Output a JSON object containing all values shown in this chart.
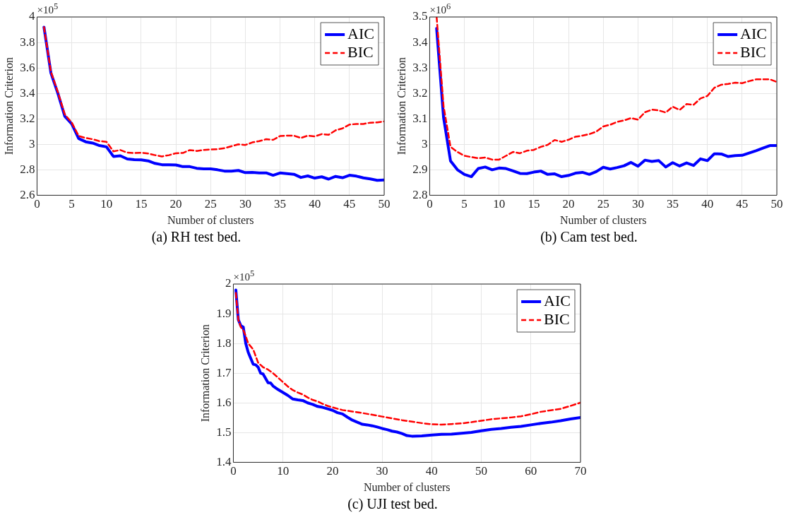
{
  "chart_data": [
    {
      "type": "line",
      "xlabel": "Number of clusters",
      "ylabel": "Information Criterion",
      "annotations": [
        "×10$^{5}$",
        "(a) RH test bed."
      ],
      "xlim": [
        0,
        50
      ],
      "xticks": [
        0,
        5,
        10,
        15,
        20,
        25,
        30,
        35,
        40,
        45,
        50
      ],
      "ylim": [
        2.6,
        4
      ],
      "yticks": [
        2.6,
        2.8,
        3,
        3.2,
        3.4,
        3.6,
        3.8,
        4
      ],
      "grid": true,
      "legend": "top right",
      "marker": "none",
      "x": [
        1,
        2,
        3,
        4,
        5,
        6,
        7,
        8,
        9,
        10,
        11,
        12,
        13,
        14,
        15,
        16,
        17,
        18,
        19,
        20,
        21,
        22,
        23,
        24,
        25,
        26,
        27,
        28,
        29,
        30,
        31,
        32,
        33,
        34,
        35,
        36,
        37,
        38,
        39,
        40,
        41,
        42,
        43,
        44,
        45,
        46,
        47,
        48,
        49,
        50
      ],
      "series": [
        {
          "name": "AIC",
          "color": "#0000ff",
          "line_style": "solid",
          "values": [
            3.92,
            3.56,
            3.4,
            3.22,
            3.16,
            3.045,
            3.02,
            3.01,
            2.99,
            2.98,
            2.905,
            2.91,
            2.885,
            2.88,
            2.878,
            2.87,
            2.85,
            2.84,
            2.84,
            2.838,
            2.825,
            2.825,
            2.812,
            2.808,
            2.808,
            2.8,
            2.79,
            2.79,
            2.795,
            2.778,
            2.78,
            2.775,
            2.776,
            2.757,
            2.775,
            2.77,
            2.765,
            2.74,
            2.752,
            2.735,
            2.745,
            2.727,
            2.748,
            2.738,
            2.757,
            2.75,
            2.737,
            2.728,
            2.717,
            2.72
          ]
        },
        {
          "name": "BIC",
          "color": "#ff0000",
          "line_style": "dashed",
          "values": [
            3.92,
            3.57,
            3.41,
            3.235,
            3.17,
            3.065,
            3.05,
            3.04,
            3.025,
            3.02,
            2.945,
            2.955,
            2.935,
            2.932,
            2.934,
            2.928,
            2.915,
            2.905,
            2.915,
            2.93,
            2.932,
            2.955,
            2.948,
            2.955,
            2.96,
            2.962,
            2.97,
            2.985,
            3.0,
            2.995,
            3.015,
            3.025,
            3.04,
            3.035,
            3.065,
            3.068,
            3.068,
            3.05,
            3.068,
            3.062,
            3.08,
            3.075,
            3.11,
            3.125,
            3.155,
            3.16,
            3.16,
            3.17,
            3.172,
            3.18
          ]
        }
      ]
    },
    {
      "type": "line",
      "xlabel": "Number of clusters",
      "ylabel": "Information Criterion",
      "annotations": [
        "×10$^{6}$",
        "(b) Cam test bed."
      ],
      "xlim": [
        0,
        50
      ],
      "xticks": [
        0,
        5,
        10,
        15,
        20,
        25,
        30,
        35,
        40,
        45,
        50
      ],
      "ylim": [
        2.8,
        3.5
      ],
      "yticks": [
        2.8,
        2.9,
        3,
        3.1,
        3.2,
        3.3,
        3.4,
        3.5
      ],
      "grid": true,
      "legend": "top right",
      "marker": "none",
      "x": [
        1,
        2,
        3,
        4,
        5,
        6,
        7,
        8,
        9,
        10,
        11,
        12,
        13,
        14,
        15,
        16,
        17,
        18,
        19,
        20,
        21,
        22,
        23,
        24,
        25,
        26,
        27,
        28,
        29,
        30,
        31,
        32,
        33,
        34,
        35,
        36,
        37,
        38,
        39,
        40,
        41,
        42,
        43,
        44,
        45,
        46,
        47,
        48,
        49,
        50
      ],
      "series": [
        {
          "name": "AIC",
          "color": "#0000ff",
          "line_style": "solid",
          "values": [
            3.455,
            3.105,
            2.935,
            2.9,
            2.882,
            2.873,
            2.905,
            2.911,
            2.9,
            2.907,
            2.905,
            2.896,
            2.886,
            2.885,
            2.891,
            2.895,
            2.882,
            2.884,
            2.873,
            2.878,
            2.887,
            2.89,
            2.882,
            2.893,
            2.91,
            2.903,
            2.909,
            2.916,
            2.929,
            2.914,
            2.938,
            2.933,
            2.936,
            2.911,
            2.928,
            2.915,
            2.927,
            2.917,
            2.943,
            2.936,
            2.963,
            2.962,
            2.952,
            2.956,
            2.957,
            2.966,
            2.975,
            2.985,
            2.995,
            2.995
          ]
        },
        {
          "name": "BIC",
          "color": "#ff0000",
          "line_style": "dashed",
          "values": [
            3.5,
            3.15,
            2.99,
            2.97,
            2.955,
            2.95,
            2.945,
            2.948,
            2.94,
            2.94,
            2.955,
            2.97,
            2.965,
            2.975,
            2.978,
            2.99,
            2.998,
            3.017,
            3.01,
            3.018,
            3.03,
            3.034,
            3.04,
            3.05,
            3.07,
            3.077,
            3.088,
            3.094,
            3.103,
            3.097,
            3.126,
            3.136,
            3.133,
            3.125,
            3.148,
            3.135,
            3.158,
            3.155,
            3.18,
            3.19,
            3.222,
            3.234,
            3.237,
            3.242,
            3.24,
            3.248,
            3.255,
            3.255,
            3.255,
            3.245
          ]
        }
      ]
    },
    {
      "type": "line",
      "xlabel": "Number of clusters",
      "ylabel": "Information Criterion",
      "annotations": [
        "×10$^{5}$",
        "(c) UJI test bed."
      ],
      "xlim": [
        0,
        70
      ],
      "xticks": [
        0,
        10,
        20,
        30,
        40,
        50,
        60,
        70
      ],
      "ylim": [
        1.4,
        2
      ],
      "yticks": [
        1.4,
        1.5,
        1.6,
        1.7,
        1.8,
        1.9,
        2
      ],
      "grid": true,
      "legend": "top right",
      "marker": "none",
      "series": [
        {
          "name": "AIC",
          "color": "#0000ff",
          "line_style": "solid",
          "x": [
            0.5,
            1,
            1.5,
            2,
            2.5,
            3,
            4,
            4.5,
            5,
            5.5,
            6,
            7,
            7.5,
            8,
            9,
            10,
            11,
            12,
            13,
            14,
            15,
            16,
            17,
            18,
            19,
            20,
            21,
            22,
            23,
            24,
            25,
            26,
            27,
            28,
            29,
            30,
            31,
            32,
            33,
            34,
            35,
            36,
            38,
            40,
            42,
            44,
            46,
            48,
            50,
            52,
            54,
            56,
            58,
            60,
            62,
            64,
            66,
            68,
            70
          ],
          "values": [
            1.98,
            1.88,
            1.86,
            1.855,
            1.8,
            1.77,
            1.73,
            1.728,
            1.72,
            1.7,
            1.697,
            1.668,
            1.667,
            1.657,
            1.645,
            1.635,
            1.625,
            1.613,
            1.61,
            1.608,
            1.6,
            1.595,
            1.588,
            1.585,
            1.58,
            1.575,
            1.567,
            1.563,
            1.552,
            1.542,
            1.535,
            1.528,
            1.526,
            1.523,
            1.519,
            1.514,
            1.51,
            1.505,
            1.502,
            1.497,
            1.49,
            1.488,
            1.489,
            1.492,
            1.494,
            1.495,
            1.498,
            1.501,
            1.506,
            1.511,
            1.514,
            1.518,
            1.521,
            1.526,
            1.531,
            1.535,
            1.54,
            1.546,
            1.551
          ]
        },
        {
          "name": "BIC",
          "color": "#ff0000",
          "line_style": "dashed",
          "x": [
            0.5,
            1,
            1.5,
            2,
            2.5,
            3,
            3.5,
            4,
            5,
            6,
            7,
            8,
            9,
            10,
            11,
            12,
            13,
            14,
            15,
            16,
            17,
            18,
            19,
            20,
            22,
            24,
            26,
            28,
            30,
            32,
            34,
            36,
            38,
            40,
            42,
            44,
            46,
            48,
            50,
            52,
            54,
            56,
            58,
            60,
            62,
            64,
            66,
            68,
            70
          ],
          "values": [
            1.97,
            1.88,
            1.855,
            1.845,
            1.825,
            1.8,
            1.79,
            1.78,
            1.735,
            1.72,
            1.712,
            1.7,
            1.685,
            1.67,
            1.655,
            1.643,
            1.635,
            1.628,
            1.618,
            1.61,
            1.605,
            1.597,
            1.59,
            1.585,
            1.576,
            1.571,
            1.566,
            1.56,
            1.554,
            1.548,
            1.542,
            1.537,
            1.532,
            1.528,
            1.527,
            1.529,
            1.531,
            1.535,
            1.54,
            1.545,
            1.548,
            1.551,
            1.555,
            1.562,
            1.57,
            1.575,
            1.58,
            1.59,
            1.601
          ]
        }
      ]
    }
  ]
}
